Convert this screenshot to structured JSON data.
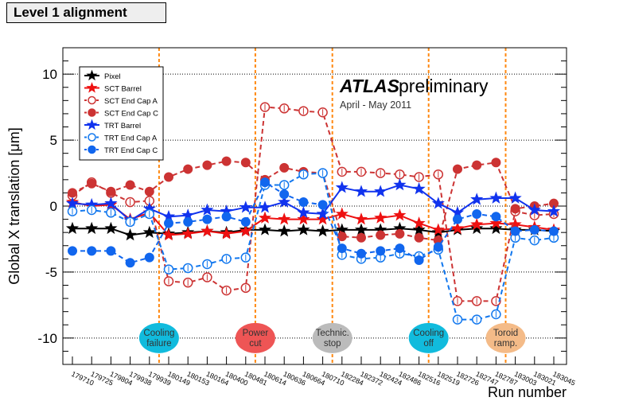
{
  "chart_data": {
    "type": "line",
    "banner": "Level 1 alignment",
    "title": "",
    "xlabel": "Run number",
    "ylabel": "Global X translation [μm]",
    "ylim": [
      -12,
      12
    ],
    "yticks": [
      -10,
      -5,
      0,
      5,
      10
    ],
    "grid": "horizontal dotted at major ticks",
    "categories": [
      "179710",
      "179725",
      "179804",
      "179938",
      "179939",
      "180149",
      "180153",
      "180164",
      "180400",
      "180481",
      "180614",
      "180636",
      "180664",
      "180710",
      "182284",
      "182372",
      "182424",
      "182486",
      "182516",
      "182519",
      "182726",
      "182747",
      "182787",
      "183003",
      "183021",
      "183045"
    ],
    "brand": {
      "name": "ATLAS",
      "suffix": "preliminary",
      "period": "April - May 2011"
    },
    "series": [
      {
        "name": "Pixel",
        "color": "#000000",
        "dash": "solid",
        "marker": "star",
        "filled": true,
        "values": [
          -1.7,
          -1.7,
          -1.7,
          -2.2,
          -2.0,
          -2.1,
          -2.0,
          -1.9,
          -2.0,
          -1.8,
          -1.8,
          -1.9,
          -1.8,
          -1.9,
          -1.8,
          -1.8,
          -1.8,
          -1.7,
          -1.8,
          -2.0,
          -1.8,
          -1.7,
          -1.7,
          -1.8,
          -1.8,
          -1.9
        ]
      },
      {
        "name": "SCT Barrel",
        "color": "#ee1111",
        "dash": "solid",
        "marker": "star",
        "filled": true,
        "values": [
          0.3,
          0.0,
          0.1,
          -1.0,
          -0.5,
          -2.2,
          -2.1,
          -1.9,
          -2.1,
          -1.9,
          -0.9,
          -1.0,
          -1.0,
          -1.0,
          -0.6,
          -1.0,
          -0.9,
          -0.7,
          -1.3,
          -1.8,
          -1.7,
          -1.4,
          -1.3,
          -1.4,
          -1.6,
          -1.8
        ]
      },
      {
        "name": "SCT End Cap A",
        "color": "#cc3333",
        "dash": "dashed",
        "marker": "circle",
        "filled": false,
        "values": [
          0.8,
          1.8,
          1.0,
          0.3,
          0.4,
          -5.7,
          -5.8,
          -5.4,
          -6.4,
          -6.2,
          7.5,
          7.4,
          7.2,
          7.1,
          2.6,
          2.6,
          2.5,
          2.4,
          2.2,
          2.4,
          -7.2,
          -7.2,
          -7.2,
          -0.4,
          -0.7,
          -0.6
        ]
      },
      {
        "name": "SCT End Cap C",
        "color": "#cc3333",
        "dash": "dashed",
        "marker": "circle",
        "filled": true,
        "values": [
          1.0,
          1.7,
          1.1,
          1.6,
          1.1,
          2.2,
          2.8,
          3.1,
          3.4,
          3.3,
          2.0,
          2.9,
          2.6,
          2.5,
          -2.3,
          -2.4,
          -2.2,
          -2.1,
          -2.4,
          -2.6,
          2.8,
          3.1,
          3.3,
          -0.2,
          0.0,
          0.2
        ]
      },
      {
        "name": "TRT Barrel",
        "color": "#1133ee",
        "dash": "solid",
        "marker": "star",
        "filled": true,
        "values": [
          0.2,
          0.1,
          0.2,
          -1.1,
          -0.2,
          -0.8,
          -0.7,
          -0.3,
          -0.4,
          -0.1,
          -0.1,
          0.3,
          -0.5,
          -0.6,
          1.4,
          1.1,
          1.1,
          1.6,
          1.3,
          0.2,
          -0.5,
          0.5,
          0.6,
          0.6,
          -0.3,
          -0.4
        ]
      },
      {
        "name": "TRT End Cap A",
        "color": "#1177ee",
        "dash": "dashed",
        "marker": "circle",
        "filled": false,
        "values": [
          -0.4,
          -0.3,
          -0.5,
          -1.2,
          -0.6,
          -4.8,
          -4.7,
          -4.4,
          -4.0,
          -3.9,
          1.6,
          1.6,
          2.4,
          2.5,
          -3.7,
          -4.0,
          -3.9,
          -3.6,
          -3.8,
          -3.3,
          -8.6,
          -8.6,
          -8.2,
          -2.4,
          -2.6,
          -2.4
        ]
      },
      {
        "name": "TRT End Cap C",
        "color": "#1166ee",
        "dash": "dashed",
        "marker": "circle",
        "filled": true,
        "values": [
          -3.4,
          -3.4,
          -3.4,
          -4.3,
          -3.9,
          -1.3,
          -1.2,
          -1.0,
          -0.8,
          -1.2,
          1.8,
          0.9,
          0.3,
          0.1,
          -3.2,
          -3.6,
          -3.4,
          -3.2,
          -4.1,
          -3.1,
          -1.0,
          -0.6,
          -0.8,
          -1.9,
          -1.8,
          -1.9
        ]
      }
    ],
    "events": [
      {
        "label_lines": [
          "Cooling",
          "failure"
        ],
        "between": [
          4,
          5
        ],
        "color": "#11bbdd"
      },
      {
        "label_lines": [
          "Power",
          "cut"
        ],
        "between": [
          9,
          10
        ],
        "color": "#ee5555"
      },
      {
        "label_lines": [
          "Technic.",
          "stop"
        ],
        "between": [
          13,
          14
        ],
        "color": "#bbbbbb"
      },
      {
        "label_lines": [
          "Cooling",
          "off"
        ],
        "between": [
          18,
          19
        ],
        "color": "#11bbdd"
      },
      {
        "label_lines": [
          "Toroid",
          "ramp."
        ],
        "between": [
          22,
          23
        ],
        "color": "#f4bb88"
      }
    ],
    "event_line_color": "#ff8811"
  }
}
